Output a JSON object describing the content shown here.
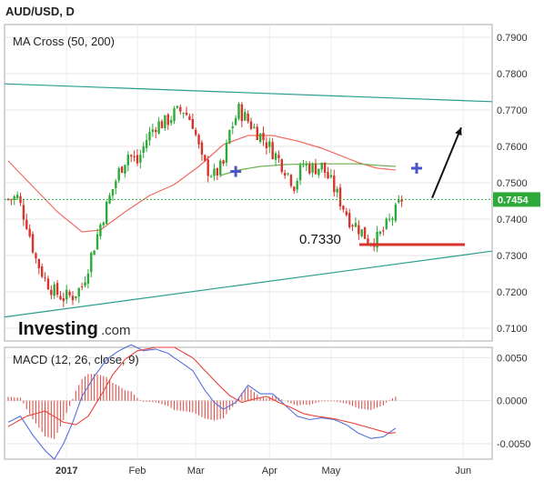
{
  "header": {
    "symbol": "AUD/USD, D"
  },
  "colors": {
    "up": "#2eaa3a",
    "down": "#d9342b",
    "ma50": "#f26a61",
    "ma200": "#6ab04c",
    "trendline": "#2a9d8f",
    "support": "#d9342b",
    "arrow": "#111111",
    "cross_marker": "#4a55c8",
    "macd": "#5470e0",
    "signal": "#e8423a",
    "current_price": "#2eaa3a"
  },
  "brand": {
    "name": "Investing",
    "suffix": ".com"
  },
  "chart_data": [
    {
      "type": "candlestick",
      "title": "MA Cross (50, 200)",
      "y_ticks": [
        "0.7900",
        "0.7800",
        "0.7700",
        "0.7600",
        "0.7500",
        "0.7400",
        "0.7300",
        "0.7200",
        "0.7100"
      ],
      "ylim": [
        0.7065,
        0.7935
      ],
      "x_ticks": [
        "2017",
        "Feb",
        "Mar",
        "Apr",
        "May",
        "Jun"
      ],
      "current_price": {
        "value": 0.7454,
        "label": "0.7454"
      },
      "annotations": {
        "support_level": 0.733,
        "support_label": "0.7330"
      },
      "moving_averages": [
        "50",
        "200"
      ],
      "candles": []
    },
    {
      "type": "line",
      "title": "MACD (12, 26, close, 9)",
      "series": [
        "MACD",
        "signal",
        "histogram"
      ],
      "y_ticks": [
        "0.0050",
        "0.0000",
        "-0.0050"
      ],
      "ylim": [
        -0.0068,
        0.0062
      ]
    }
  ]
}
